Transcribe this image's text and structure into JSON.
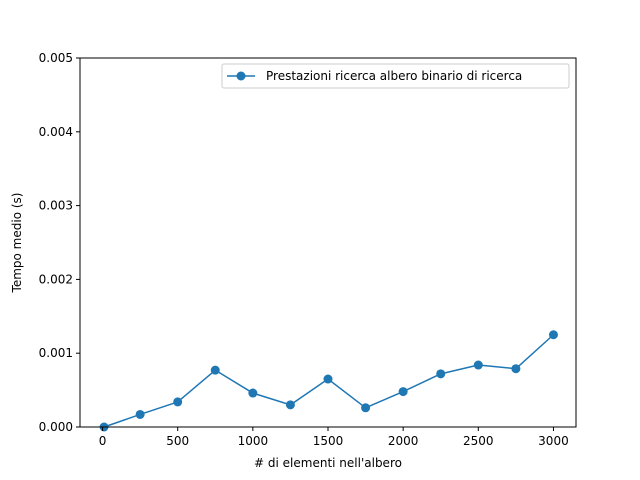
{
  "chart_data": {
    "type": "line",
    "title": "",
    "xlabel": "# di elementi nell'albero",
    "ylabel": "Tempo medio (s)",
    "xlim": [
      -150,
      3150
    ],
    "ylim": [
      0,
      0.005
    ],
    "xticks": [
      0,
      500,
      1000,
      1500,
      2000,
      2500,
      3000
    ],
    "yticks": [
      0.0,
      0.001,
      0.002,
      0.003,
      0.004,
      0.005
    ],
    "ytick_labels": [
      "0.000",
      "0.001",
      "0.002",
      "0.003",
      "0.004",
      "0.005"
    ],
    "grid": false,
    "legend_position": "top-right",
    "series": [
      {
        "name": "Prestazioni ricerca albero binario di ricerca",
        "color": "#1f77b4",
        "marker": "circle",
        "x": [
          10,
          250,
          500,
          750,
          1000,
          1250,
          1500,
          1750,
          2000,
          2250,
          2500,
          2750,
          3000
        ],
        "y": [
          0.0,
          0.00017,
          0.00034,
          0.00077,
          0.00046,
          0.0003,
          0.00065,
          0.00026,
          0.00048,
          0.00072,
          0.00084,
          0.00079,
          0.00125
        ]
      }
    ]
  }
}
